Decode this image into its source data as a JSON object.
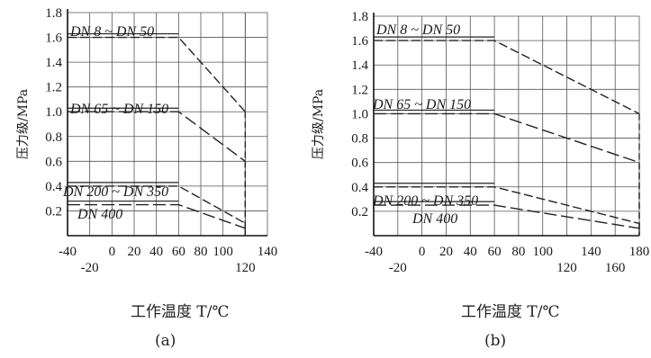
{
  "chart_data": [
    {
      "type": "line",
      "panel_label": "(a)",
      "xlabel": "工作温度 T/℃",
      "ylabel": "压力级/MPa",
      "xlim": [
        -40,
        140
      ],
      "ylim": [
        0,
        1.8
      ],
      "x_ticks_row1": [
        "-40",
        "0",
        "20",
        "40",
        "60",
        "80",
        "100",
        "",
        "140"
      ],
      "x_ticks_row1_values": [
        -40,
        0,
        20,
        40,
        60,
        80,
        100,
        120,
        140
      ],
      "x_ticks_row2": [
        "-20",
        "120"
      ],
      "x_ticks_row2_values": [
        -20,
        120
      ],
      "y_ticks": [
        "0.2",
        "0.4",
        "0.6",
        "0.8",
        "1.0",
        "1.2",
        "1.4",
        "1.6",
        "1.8"
      ],
      "y_tick_values": [
        0.2,
        0.4,
        0.6,
        0.8,
        1.0,
        1.2,
        1.4,
        1.6,
        1.8
      ],
      "grid": true,
      "series": [
        {
          "name": "DN 8 ~ DN 50",
          "x": [
            -40,
            60,
            120
          ],
          "y": [
            1.6,
            1.6,
            1.0
          ]
        },
        {
          "name": "DN 65 ~ DN 150",
          "x": [
            -40,
            60,
            120
          ],
          "y": [
            1.0,
            1.0,
            0.6
          ]
        },
        {
          "name": "DN 200 ~ DN 350",
          "x": [
            -40,
            60,
            120
          ],
          "y": [
            0.4,
            0.4,
            0.1
          ]
        },
        {
          "name": "DN 400",
          "x": [
            -40,
            60,
            120
          ],
          "y": [
            0.25,
            0.25,
            0.06
          ]
        }
      ]
    },
    {
      "type": "line",
      "panel_label": "(b)",
      "xlabel": "工作温度 T/℃",
      "ylabel": "压力级/MPa",
      "xlim": [
        -40,
        180
      ],
      "ylim": [
        0,
        1.8
      ],
      "x_ticks_row1": [
        "-40",
        "0",
        "20",
        "40",
        "60",
        "80",
        "100",
        "140",
        "180"
      ],
      "x_ticks_row1_values": [
        -40,
        0,
        20,
        40,
        60,
        80,
        100,
        140,
        180
      ],
      "x_ticks_row2": [
        "-20",
        "120",
        "160"
      ],
      "x_ticks_row2_values": [
        -20,
        120,
        160
      ],
      "y_ticks": [
        "0.2",
        "0.4",
        "0.6",
        "0.8",
        "1.0",
        "1.2",
        "1.4",
        "1.6",
        "1.8"
      ],
      "y_tick_values": [
        0.2,
        0.4,
        0.6,
        0.8,
        1.0,
        1.2,
        1.4,
        1.6,
        1.8
      ],
      "grid": true,
      "series": [
        {
          "name": "DN 8 ~ DN 50",
          "x": [
            -40,
            60,
            180
          ],
          "y": [
            1.6,
            1.6,
            1.0
          ]
        },
        {
          "name": "DN 65 ~ DN 150",
          "x": [
            -40,
            60,
            180
          ],
          "y": [
            1.0,
            1.0,
            0.6
          ]
        },
        {
          "name": "DN 200 ~ DN 350",
          "x": [
            -40,
            60,
            180
          ],
          "y": [
            0.4,
            0.4,
            0.1
          ]
        },
        {
          "name": "DN 400",
          "x": [
            -40,
            60,
            180
          ],
          "y": [
            0.25,
            0.25,
            0.06
          ]
        }
      ]
    }
  ]
}
